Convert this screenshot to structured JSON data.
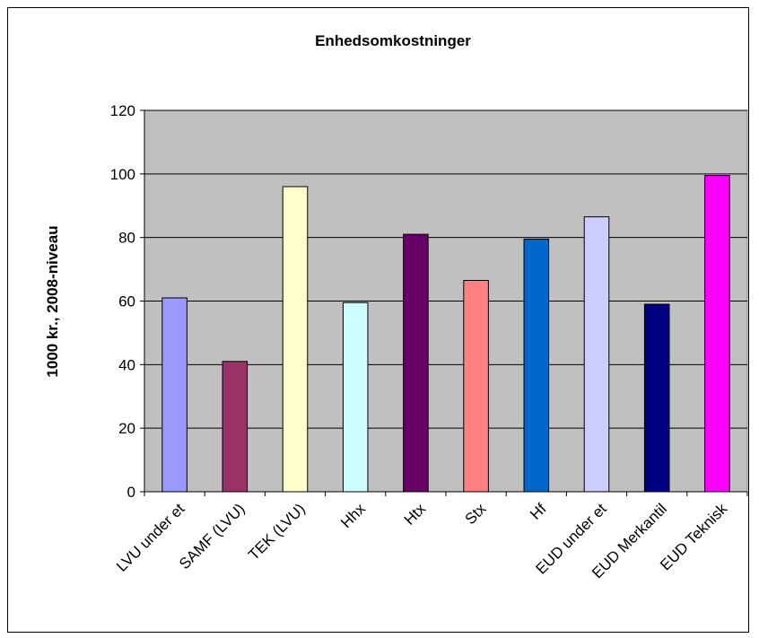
{
  "chart_data": {
    "type": "bar",
    "title": "Enhedsomkostninger",
    "xlabel": "",
    "ylabel": "1000 kr., 2008-niveau",
    "ylim": [
      0,
      120
    ],
    "yticks": [
      0,
      20,
      40,
      60,
      80,
      100,
      120
    ],
    "grid": true,
    "legend": "none",
    "plot_background": "#c0c0c0",
    "categories": [
      "LVU under et",
      "SAMF (LVU)",
      "TEK (LVU)",
      "Hhx",
      "Htx",
      "Stx",
      "Hf",
      "EUD under et",
      "EUD Merkantil",
      "EUD Teknisk"
    ],
    "values": [
      61,
      41,
      96,
      59.5,
      81,
      66.5,
      79.5,
      86.5,
      59,
      99.5
    ],
    "colors": [
      "#9999ff",
      "#993366",
      "#ffffcc",
      "#ccffff",
      "#660066",
      "#ff8080",
      "#0066cc",
      "#ccccff",
      "#000080",
      "#ff00ff"
    ]
  }
}
